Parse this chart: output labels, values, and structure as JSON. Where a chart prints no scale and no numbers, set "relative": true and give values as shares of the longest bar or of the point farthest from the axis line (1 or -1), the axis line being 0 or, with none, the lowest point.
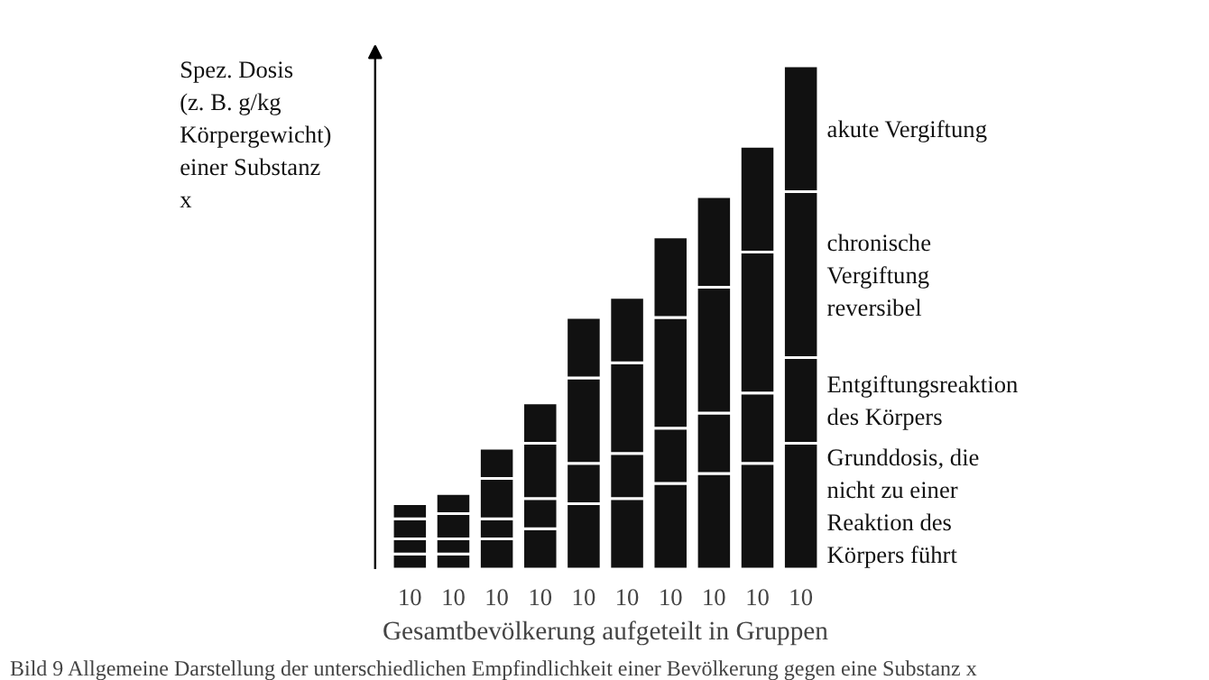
{
  "chart_data": {
    "type": "bar",
    "stacked": true,
    "relative": true,
    "xlabel": "Gesamtbevölkerung aufgeteilt in Gruppen",
    "ylabel": "Spez. Dosis (z. B. g/kg Körpergewicht) einer Substanz x",
    "categories": [
      "10",
      "10",
      "10",
      "10",
      "10",
      "10",
      "10",
      "10",
      "10",
      "10"
    ],
    "series": [
      {
        "name": "Grunddosis, die nicht zu einer Reaktion des Körpers führt",
        "color": "#111111",
        "values": [
          0.03,
          0.03,
          0.06,
          0.08,
          0.13,
          0.14,
          0.17,
          0.19,
          0.21,
          0.25
        ]
      },
      {
        "name": "Entgiftungsreaktion des Körpers",
        "color": "#111111",
        "values": [
          0.03,
          0.03,
          0.04,
          0.06,
          0.08,
          0.09,
          0.11,
          0.12,
          0.14,
          0.17
        ]
      },
      {
        "name": "chronische Vergiftung reversibel",
        "color": "#111111",
        "values": [
          0.04,
          0.05,
          0.08,
          0.11,
          0.17,
          0.18,
          0.22,
          0.25,
          0.28,
          0.33
        ]
      },
      {
        "name": "akute Vergiftung",
        "color": "#111111",
        "values": [
          0.03,
          0.04,
          0.06,
          0.08,
          0.12,
          0.13,
          0.16,
          0.18,
          0.21,
          0.25
        ]
      }
    ],
    "legend": false,
    "annotations": [
      "Bild 9 Allgemeine Darstellung der unterschiedlichen Empfindlichkeit einer Bevölkerung gegen eine Substanz x"
    ]
  }
}
